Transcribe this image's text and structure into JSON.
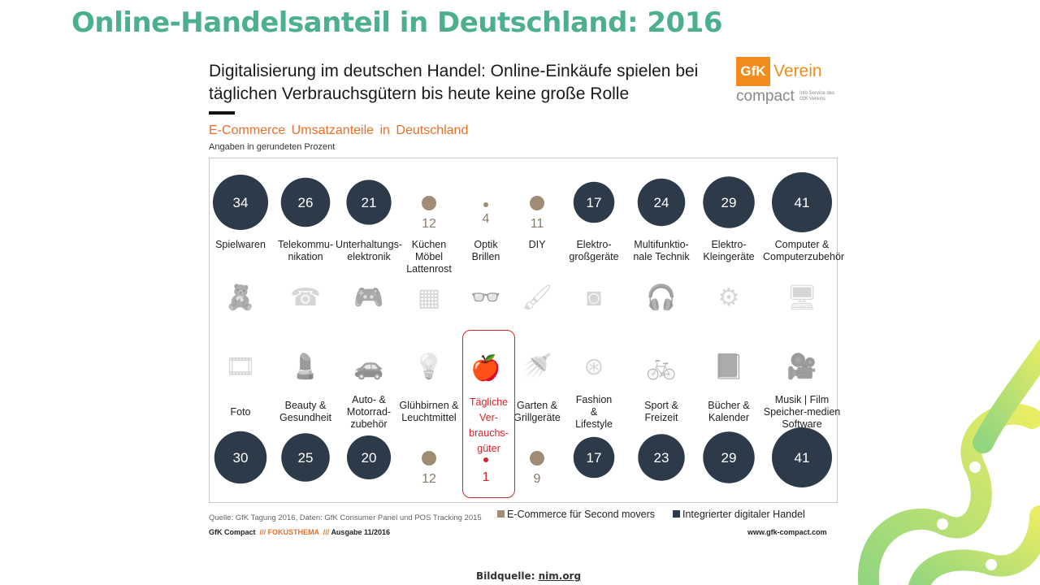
{
  "slide_title": "Online-Handelsanteil in Deutschland: 2016",
  "headline": "Digitalisierung im deutschen Handel: Online-Einkäufe spielen bei täglichen Verbrauchsgütern bis heute keine große Rolle",
  "logo": {
    "box_text": "GfK",
    "name": "Verein",
    "sub": "compact",
    "info": "Info Service des GfK Vereins"
  },
  "colors": {
    "integrated": "#2c3a4a",
    "second_movers": "#a08c74",
    "accent": "#e8702a",
    "highlight": "#d9222a",
    "title": "#4caf8f"
  },
  "chart_data": {
    "type": "bubble",
    "title": "E-Commerce Umsatzanteile in Deutschland",
    "subtitle": "Angaben in gerundeten Prozent",
    "unit": "%",
    "legend": [
      {
        "label": "E-Commerce für Second movers",
        "group": "second_movers"
      },
      {
        "label": "Integrierter digitaler Handel",
        "group": "integrated"
      }
    ],
    "rows": [
      {
        "row": "top",
        "items": [
          {
            "category": "Spielwaren",
            "value": 34,
            "group": "integrated",
            "icon": "teddy-bear-icon"
          },
          {
            "category": "Telekommu-\nnikation",
            "value": 26,
            "group": "integrated",
            "icon": "telephone-icon"
          },
          {
            "category": "Unterhaltungs-\nelektronik",
            "value": 21,
            "group": "integrated",
            "icon": "game-console-icon"
          },
          {
            "category": "Küchen\nMöbel\nLattenrost",
            "value": 12,
            "group": "second_movers",
            "icon": "oven-icon"
          },
          {
            "category": "Optik\nBrillen",
            "value": 4,
            "group": "second_movers",
            "icon": "glasses-icon"
          },
          {
            "category": "DIY",
            "value": 11,
            "group": "second_movers",
            "icon": "painter-icon"
          },
          {
            "category": "Elektro-\ngroßgeräte",
            "value": 17,
            "group": "integrated",
            "icon": "washing-machine-icon"
          },
          {
            "category": "Multifunktio-\nnale Technik",
            "value": 24,
            "group": "integrated",
            "icon": "headphones-icon"
          },
          {
            "category": "Elektro-\nKleingeräte",
            "value": 29,
            "group": "integrated",
            "icon": "vacuum-cleaner-icon"
          },
          {
            "category": "Computer &\nComputerzubehör",
            "value": 41,
            "group": "integrated",
            "icon": "computer-icon"
          }
        ]
      },
      {
        "row": "bottom",
        "items": [
          {
            "category": "Foto",
            "value": 30,
            "group": "integrated",
            "icon": "film-roll-icon"
          },
          {
            "category": "Beauty &\nGesundheit",
            "value": 25,
            "group": "integrated",
            "icon": "lipstick-icon"
          },
          {
            "category": "Auto- &\nMotorrad-\nzubehör",
            "value": 20,
            "group": "integrated",
            "icon": "car-icon"
          },
          {
            "category": "Glühbirnen &\nLeuchtmittel",
            "value": 12,
            "group": "second_movers",
            "icon": "light-bulb-icon"
          },
          {
            "category": "Tägliche\nVer-\nbrauchs-\ngüter",
            "value": 1,
            "group": "highlight",
            "icon": "apple-icon"
          },
          {
            "category": "Garten &\nGrillgeräte",
            "value": 9,
            "group": "second_movers",
            "icon": "watering-can-icon"
          },
          {
            "category": "Fashion\n&\nLifestyle",
            "value": 17,
            "group": "integrated",
            "icon": "button-icon"
          },
          {
            "category": "Sport &\nFreizeit",
            "value": 23,
            "group": "integrated",
            "icon": "cyclist-icon"
          },
          {
            "category": "Bücher &\nKalender",
            "value": 29,
            "group": "integrated",
            "icon": "book-icon"
          },
          {
            "category": "Musik | Film\nSpeicher-medien\nSoftware",
            "value": 41,
            "group": "integrated",
            "icon": "video-camera-icon"
          }
        ]
      }
    ]
  },
  "source": "Quelle: GfK Tagung 2016, Daten: GfK Consumer Panel und POS Tracking 2015",
  "footer": {
    "brand": "GfK Compact",
    "sep": "///",
    "topic": "FOKUSTHEMA",
    "issue": "Ausgabe 11/2016",
    "url": "www.gfk-compact.com"
  },
  "bildquelle": {
    "label": "Bildquelle:",
    "link": "nim.org"
  }
}
